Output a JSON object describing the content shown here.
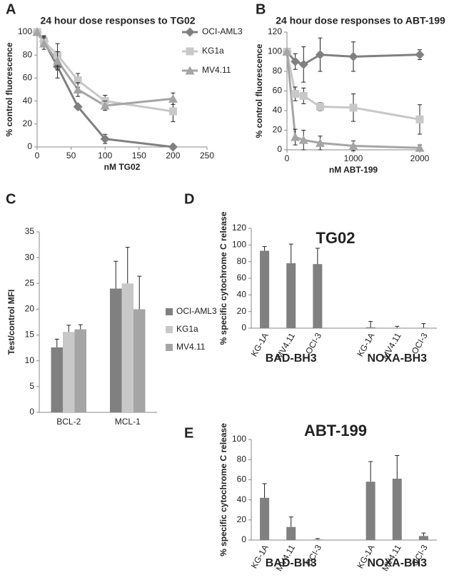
{
  "chart_data": [
    {
      "type": "line",
      "label": "A",
      "title": "24 hour dose responses to TG02",
      "xlabel": "nM TG02",
      "ylabel": "% control fluorescence",
      "x": [
        0,
        10,
        30,
        60,
        100,
        200
      ],
      "xlim": [
        0,
        250
      ],
      "xticks": [
        0,
        50,
        100,
        150,
        200,
        250
      ],
      "ylim": [
        0,
        100
      ],
      "yticks": [
        0,
        20,
        40,
        60,
        80,
        100
      ],
      "legend": "right",
      "series": [
        {
          "name": "OCI-AML3",
          "color": "#808080",
          "marker": "diamond",
          "values": [
            100,
            92,
            70,
            35,
            7,
            0
          ],
          "errors": [
            0,
            5,
            10,
            0,
            4,
            0
          ]
        },
        {
          "name": "KG1a",
          "color": "#c8c8c8",
          "marker": "square",
          "values": [
            100,
            92,
            80,
            58,
            40,
            31
          ],
          "errors": [
            0,
            4,
            10,
            6,
            5,
            9
          ]
        },
        {
          "name": "MV4.11",
          "color": "#a5a5a5",
          "marker": "triangle",
          "values": [
            100,
            90,
            75,
            50,
            36,
            42
          ],
          "errors": [
            0,
            5,
            8,
            6,
            4,
            5
          ]
        }
      ]
    },
    {
      "type": "line",
      "label": "B",
      "title": "24 hour dose responses to ABT-199",
      "xlabel": "nM ABT-199",
      "ylabel": "% control fluorescence",
      "x": [
        0,
        125,
        250,
        500,
        1000,
        2000
      ],
      "xlim": [
        0,
        2000
      ],
      "xticks": [
        0,
        1000,
        2000
      ],
      "ylim": [
        0,
        120
      ],
      "yticks": [
        0,
        20,
        40,
        60,
        80,
        100,
        120
      ],
      "series": [
        {
          "color": "#808080",
          "marker": "diamond",
          "values": [
            100,
            90,
            87,
            97,
            95,
            97
          ],
          "errors": [
            0,
            8,
            18,
            17,
            15,
            5
          ]
        },
        {
          "color": "#c8c8c8",
          "marker": "square",
          "values": [
            100,
            57,
            55,
            44,
            43,
            31
          ],
          "errors": [
            0,
            7,
            8,
            4,
            14,
            15
          ]
        },
        {
          "color": "#a5a5a5",
          "marker": "triangle",
          "values": [
            100,
            13,
            10,
            7,
            4,
            2
          ],
          "errors": [
            0,
            8,
            10,
            7,
            5,
            3
          ]
        }
      ]
    },
    {
      "type": "bar",
      "label": "C",
      "ylabel": "Test/control MFI",
      "categories": [
        "BCL-2",
        "MCL-1"
      ],
      "ylim": [
        0,
        35
      ],
      "yticks": [
        0,
        5,
        10,
        15,
        20,
        25,
        30,
        35
      ],
      "legend": "right",
      "series": [
        {
          "name": "OCI-AML3",
          "color": "#808080",
          "values": [
            12.6,
            24
          ],
          "errors": [
            1.6,
            5.3
          ]
        },
        {
          "name": "KG1a",
          "color": "#c8c8c8",
          "values": [
            15.6,
            25
          ],
          "errors": [
            1.3,
            7
          ]
        },
        {
          "name": "MV4.11",
          "color": "#a5a5a5",
          "values": [
            16.1,
            20
          ],
          "errors": [
            0.9,
            6.4
          ]
        }
      ]
    },
    {
      "type": "bar",
      "label": "D",
      "title": "TG02",
      "ylabel": "% specific cytochrome C release",
      "categories": [
        "KG-1A",
        "MV4.11",
        "OCI-3",
        null,
        "KG-1A",
        "MV4.11",
        "OCI-3"
      ],
      "groups": [
        "BAD-BH3",
        "NOXA-BH3"
      ],
      "ylim": [
        0,
        120
      ],
      "yticks": [
        0,
        20,
        40,
        60,
        80,
        100,
        120
      ],
      "series": [
        {
          "color": "#808080",
          "values": [
            93,
            78,
            77,
            null,
            1,
            0.3,
            0.5
          ],
          "errors": [
            5,
            23,
            19,
            null,
            7,
            2,
            5
          ]
        }
      ]
    },
    {
      "type": "bar",
      "label": "E",
      "title": "ABT-199",
      "ylabel": "% specific cytochrome C release",
      "categories": [
        "KG-1A",
        "MV4.11",
        "OCI-3",
        null,
        "KG-1A",
        "MV4.11",
        "OCI-3"
      ],
      "groups": [
        "BAD-BH3",
        "NOXA-BH3"
      ],
      "ylim": [
        0,
        100
      ],
      "yticks": [
        0,
        20,
        40,
        60,
        80,
        100
      ],
      "series": [
        {
          "color": "#808080",
          "values": [
            42,
            13,
            0.5,
            null,
            58,
            61,
            4
          ],
          "errors": [
            14,
            10,
            1,
            null,
            20,
            23,
            3
          ]
        }
      ]
    }
  ]
}
